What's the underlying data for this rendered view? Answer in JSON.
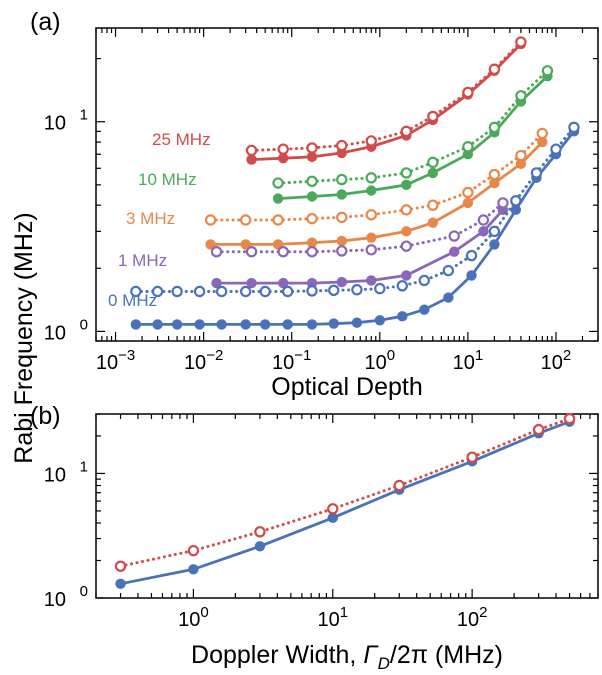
{
  "figure": {
    "ylabel": "Rabi Frequency (MHz)"
  },
  "chart_data": [
    {
      "type": "line",
      "panel": "(a)",
      "xlabel": "Optical Depth",
      "ylabel": "Rabi Frequency (MHz)",
      "xscale": "log",
      "yscale": "log",
      "xlim": [
        0.0006,
        300
      ],
      "ylim": [
        0.9,
        28
      ],
      "x_ticks": [
        {
          "value": 0.001,
          "base": "10",
          "exp": "−3"
        },
        {
          "value": 0.01,
          "base": "10",
          "exp": "−2"
        },
        {
          "value": 0.1,
          "base": "10",
          "exp": "−1"
        },
        {
          "value": 1,
          "base": "10",
          "exp": "0"
        },
        {
          "value": 10,
          "base": "10",
          "exp": "1"
        },
        {
          "value": 100,
          "base": "10",
          "exp": "2"
        }
      ],
      "y_ticks": [
        {
          "value": 1,
          "base": "10",
          "exp": "0"
        },
        {
          "value": 10,
          "base": "10",
          "exp": "1"
        }
      ],
      "grid": false,
      "series": [
        {
          "name": "25 MHz",
          "color": "#d24a4a",
          "style": "solid",
          "marker": "filled",
          "x": [
            0.035,
            0.08,
            0.17,
            0.37,
            0.8,
            2,
            4,
            10,
            20,
            40
          ],
          "y": [
            6.6,
            6.7,
            6.8,
            7.1,
            7.6,
            8.6,
            10.2,
            13.5,
            17.5,
            23.5
          ]
        },
        {
          "name": "25 MHz",
          "color": "#d24a4a",
          "style": "dotted",
          "marker": "open",
          "x": [
            0.035,
            0.08,
            0.17,
            0.37,
            0.8,
            2,
            4,
            10,
            20,
            40
          ],
          "y": [
            7.3,
            7.4,
            7.5,
            7.7,
            8.1,
            9.0,
            10.6,
            13.8,
            17.8,
            24.0
          ]
        },
        {
          "name": "10 MHz",
          "color": "#4aaa5a",
          "style": "solid",
          "marker": "filled",
          "x": [
            0.07,
            0.17,
            0.37,
            0.8,
            2,
            4,
            10,
            20,
            40,
            80
          ],
          "y": [
            4.3,
            4.4,
            4.5,
            4.7,
            5.0,
            5.7,
            7.0,
            8.9,
            12.5,
            16.5
          ]
        },
        {
          "name": "10 MHz",
          "color": "#4aaa5a",
          "style": "dotted",
          "marker": "open",
          "x": [
            0.07,
            0.17,
            0.37,
            0.8,
            2,
            4,
            10,
            20,
            40,
            80
          ],
          "y": [
            5.1,
            5.2,
            5.3,
            5.4,
            5.7,
            6.4,
            7.6,
            9.4,
            13.3,
            17.5
          ]
        },
        {
          "name": "3 MHz",
          "color": "#e8874a",
          "style": "solid",
          "marker": "filled",
          "x": [
            0.012,
            0.03,
            0.07,
            0.17,
            0.37,
            0.8,
            2,
            4,
            10,
            20,
            40,
            70
          ],
          "y": [
            2.6,
            2.6,
            2.6,
            2.65,
            2.7,
            2.8,
            3.0,
            3.3,
            4.1,
            5.1,
            6.3,
            8.0
          ]
        },
        {
          "name": "3 MHz",
          "color": "#e8874a",
          "style": "dotted",
          "marker": "open",
          "x": [
            0.012,
            0.03,
            0.07,
            0.17,
            0.37,
            0.8,
            2,
            4,
            10,
            20,
            40,
            70
          ],
          "y": [
            3.4,
            3.4,
            3.4,
            3.45,
            3.5,
            3.6,
            3.8,
            4.0,
            4.6,
            5.6,
            6.9,
            8.8
          ]
        },
        {
          "name": "1 MHz",
          "color": "#8a67b8",
          "style": "solid",
          "marker": "filled",
          "x": [
            0.014,
            0.035,
            0.08,
            0.17,
            0.37,
            0.8,
            2,
            7,
            15,
            25
          ],
          "y": [
            1.7,
            1.7,
            1.7,
            1.7,
            1.72,
            1.75,
            1.85,
            2.4,
            3.0,
            3.8
          ]
        },
        {
          "name": "1 MHz",
          "color": "#8a67b8",
          "style": "dotted",
          "marker": "open",
          "x": [
            0.014,
            0.035,
            0.08,
            0.17,
            0.37,
            0.8,
            2,
            7,
            15,
            25
          ],
          "y": [
            2.4,
            2.4,
            2.4,
            2.4,
            2.42,
            2.45,
            2.55,
            2.85,
            3.4,
            4.1
          ]
        },
        {
          "name": "0 MHz",
          "color": "#4a72b8",
          "style": "solid",
          "marker": "filled",
          "x": [
            0.0017,
            0.003,
            0.005,
            0.009,
            0.016,
            0.03,
            0.05,
            0.09,
            0.17,
            0.3,
            0.55,
            1,
            1.8,
            3.2,
            6,
            11,
            20,
            35,
            60,
            100,
            160
          ],
          "y": [
            1.08,
            1.08,
            1.08,
            1.08,
            1.08,
            1.08,
            1.08,
            1.08,
            1.08,
            1.09,
            1.1,
            1.13,
            1.18,
            1.27,
            1.45,
            1.85,
            2.6,
            3.8,
            5.4,
            7.0,
            9.0
          ]
        },
        {
          "name": "0 MHz",
          "color": "#4a72b8",
          "style": "dotted",
          "marker": "open",
          "x": [
            0.0017,
            0.003,
            0.005,
            0.009,
            0.016,
            0.03,
            0.05,
            0.09,
            0.17,
            0.3,
            0.55,
            1,
            1.8,
            3.2,
            6,
            11,
            20,
            35,
            60,
            100,
            160
          ],
          "y": [
            1.55,
            1.55,
            1.55,
            1.55,
            1.55,
            1.55,
            1.55,
            1.55,
            1.56,
            1.57,
            1.58,
            1.6,
            1.65,
            1.75,
            1.95,
            2.3,
            3.0,
            4.2,
            5.7,
            7.4,
            9.4
          ]
        }
      ]
    },
    {
      "type": "line",
      "panel": "(b)",
      "xlabel": "Doppler Width, Γ_D/2π (MHz)",
      "xlabel_parts": {
        "pre": "Doppler Width, ",
        "gamma": "Γ",
        "sub": "D",
        "post": "/2π (MHz)"
      },
      "ylabel": "Rabi Frequency (MHz)",
      "xscale": "log",
      "yscale": "log",
      "xlim": [
        0.2,
        800
      ],
      "ylim": [
        1,
        30
      ],
      "x_ticks": [
        {
          "value": 1,
          "base": "10",
          "exp": "0"
        },
        {
          "value": 10,
          "base": "10",
          "exp": "1"
        },
        {
          "value": 100,
          "base": "10",
          "exp": "2"
        }
      ],
      "y_ticks": [
        {
          "value": 1,
          "base": "10",
          "exp": "0"
        },
        {
          "value": 10,
          "base": "10",
          "exp": "1"
        }
      ],
      "grid": false,
      "series": [
        {
          "color": "#4a72b8",
          "style": "solid",
          "marker": "filled",
          "x": [
            0.3,
            1,
            3,
            10,
            30,
            100,
            300,
            500
          ],
          "y": [
            1.3,
            1.7,
            2.6,
            4.4,
            7.4,
            12.5,
            21,
            26
          ]
        },
        {
          "color": "#d24a4a",
          "style": "dotted",
          "marker": "open",
          "x": [
            0.3,
            1,
            3,
            10,
            30,
            100,
            300,
            500
          ],
          "y": [
            1.8,
            2.4,
            3.4,
            5.2,
            8.0,
            13.5,
            22.5,
            27.5
          ]
        }
      ]
    }
  ]
}
